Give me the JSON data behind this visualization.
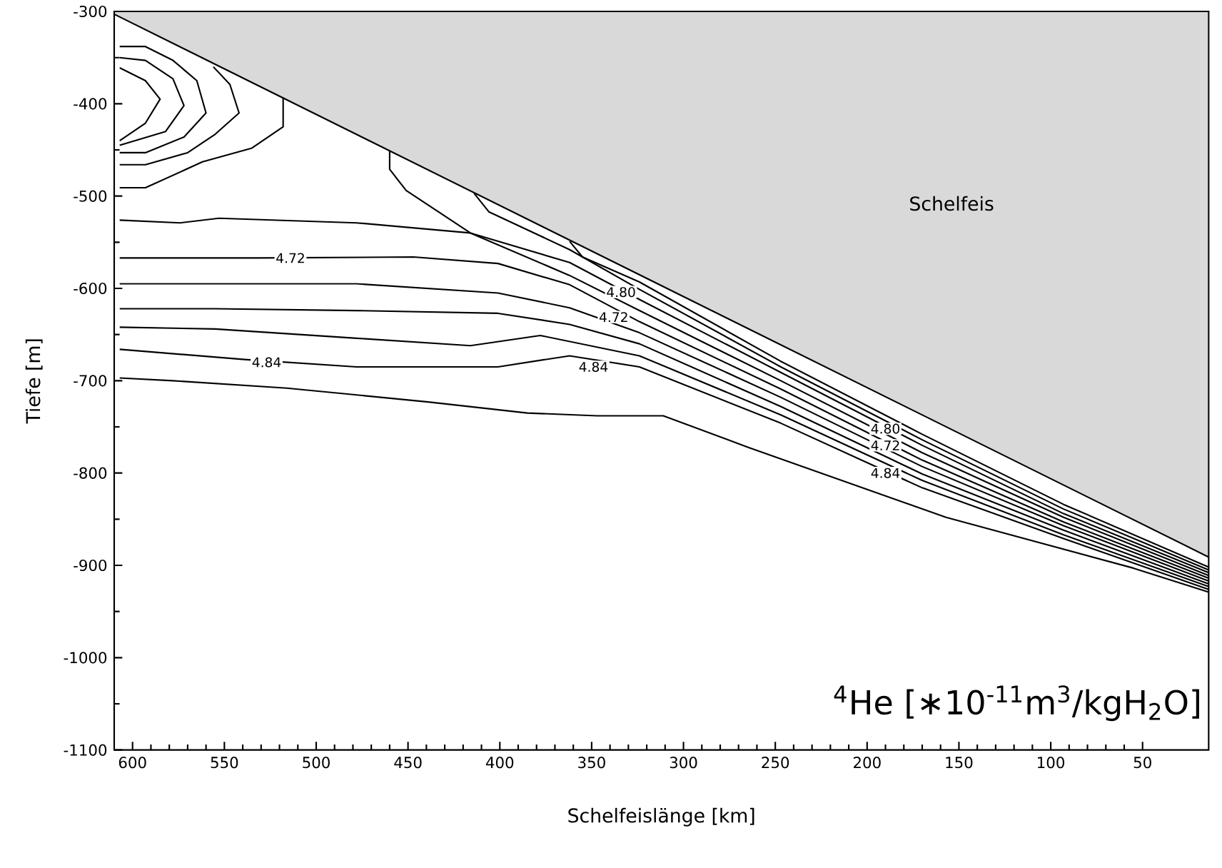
{
  "chart_data": {
    "type": "line",
    "xlabel": "Schelfeislänge [km]",
    "ylabel": "Tiefe [m]",
    "xlim": [
      610,
      14
    ],
    "ylim": [
      -1100,
      -300
    ],
    "xticks": [
      600,
      550,
      500,
      450,
      400,
      350,
      300,
      250,
      200,
      150,
      100,
      50
    ],
    "yticks": [
      -300,
      -400,
      -500,
      -600,
      -700,
      -800,
      -900,
      -1000,
      -1100
    ],
    "grid": false,
    "series": [
      {
        "type": "area",
        "name": "Schelfeis",
        "color": "#d9d9d9",
        "x": [
          610,
          14
        ],
        "values": [
          -303,
          -891
        ]
      },
      {
        "color": "#000000",
        "x": [
          607,
          593,
          578,
          565,
          560,
          572,
          593,
          607
        ],
        "values": [
          -338,
          -338,
          -353,
          -375,
          -410,
          -436,
          -453,
          -453
        ]
      },
      {
        "color": "#000000",
        "x": [
          607,
          593,
          578,
          572,
          582,
          607
        ],
        "values": [
          -350,
          -353,
          -373,
          -402,
          -430,
          -445
        ]
      },
      {
        "color": "#000000",
        "x": [
          607,
          593,
          585,
          593,
          607
        ],
        "values": [
          -361,
          -375,
          -395,
          -421,
          -440
        ]
      },
      {
        "color": "#000000",
        "x": [
          556,
          547,
          542,
          555,
          570,
          593,
          607
        ],
        "values": [
          -360,
          -379,
          -410,
          -433,
          -453,
          -466,
          -466
        ]
      },
      {
        "color": "#000000",
        "x": [
          518,
          518,
          535,
          562,
          593,
          607
        ],
        "values": [
          -393,
          -425,
          -448,
          -463,
          -491,
          -491
        ]
      },
      {
        "color": "#000000",
        "x": [
          362,
          355,
          324,
          247,
          170,
          93,
          14
        ],
        "values": [
          -549,
          -566,
          -593,
          -679,
          -758,
          -834,
          -902
        ]
      },
      {
        "color": "#000000",
        "x": [
          414,
          406,
          362,
          324,
          247,
          170,
          93,
          14
        ],
        "values": [
          -497,
          -517,
          -558,
          -601,
          -685,
          -764,
          -839,
          -905
        ]
      },
      {
        "color": "#000000",
        "x": [
          460,
          460,
          451,
          416,
          362,
          324,
          247,
          170,
          93,
          14
        ],
        "values": [
          -451,
          -471,
          -494,
          -540,
          -572,
          -612,
          -691,
          -770,
          -844,
          -908
        ]
      },
      {
        "color": "#000000",
        "x": [
          607,
          574,
          553,
          478,
          416,
          362,
          324,
          247,
          170,
          93,
          14
        ],
        "values": [
          -526,
          -529,
          -524,
          -529,
          -540,
          -586,
          -624,
          -700,
          -778,
          -848,
          -911
        ]
      },
      {
        "color": "#000000",
        "x": [
          607,
          532,
          447,
          401,
          362,
          324,
          247,
          170,
          93,
          14
        ],
        "values": [
          -567,
          -567,
          -566,
          -573,
          -596,
          -636,
          -709,
          -786,
          -853,
          -914
        ]
      },
      {
        "color": "#000000",
        "x": [
          607,
          555,
          478,
          401,
          362,
          324,
          247,
          170,
          93,
          14
        ],
        "values": [
          -595,
          -595,
          -595,
          -605,
          -621,
          -648,
          -718,
          -793,
          -857,
          -917
        ]
      },
      {
        "color": "#000000",
        "x": [
          607,
          555,
          478,
          401,
          362,
          324,
          247,
          170,
          93,
          14
        ],
        "values": [
          -622,
          -622,
          -624,
          -627,
          -639,
          -660,
          -728,
          -801,
          -862,
          -920
        ]
      },
      {
        "color": "#000000",
        "x": [
          607,
          555,
          478,
          416,
          378,
          324,
          247,
          170,
          93,
          14
        ],
        "values": [
          -642,
          -644,
          -654,
          -662,
          -651,
          -673,
          -737,
          -808,
          -867,
          -923
        ]
      },
      {
        "color": "#000000",
        "x": [
          607,
          539,
          478,
          401,
          362,
          324,
          247,
          170,
          93,
          14
        ],
        "values": [
          -666,
          -677,
          -685,
          -685,
          -673,
          -685,
          -746,
          -816,
          -871,
          -926
        ]
      },
      {
        "color": "#000000",
        "x": [
          607,
          578,
          516,
          439,
          385,
          347,
          311,
          265,
          157,
          55,
          14
        ],
        "values": [
          -697,
          -700,
          -708,
          -723,
          -735,
          -738,
          -738,
          -772,
          -848,
          -903,
          -929
        ]
      }
    ],
    "annotations": [
      {
        "text": "4.72",
        "x": 514,
        "y": -567
      },
      {
        "text": "4.84",
        "x": 527,
        "y": -680
      },
      {
        "text": "4.84",
        "x": 349,
        "y": -685
      },
      {
        "text": "4.80",
        "x": 334,
        "y": -604
      },
      {
        "text": "4.72",
        "x": 338,
        "y": -631
      },
      {
        "text": "4.80",
        "x": 190,
        "y": -752
      },
      {
        "text": "4.72",
        "x": 190,
        "y": -770
      },
      {
        "text": "4.84",
        "x": 190,
        "y": -800
      },
      "$^{4}$He [∗10$^{-11}$m$^{3}$/kgH$_{2}$O]"
    ]
  }
}
